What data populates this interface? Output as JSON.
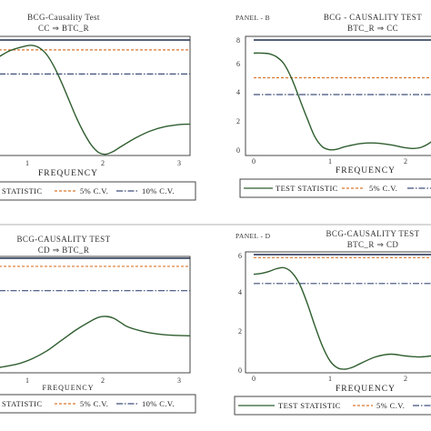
{
  "colors": {
    "test_statistic": "#2f5e2f",
    "cv5": "#d9772e",
    "cv10": "#3f4f7a",
    "top_line": "#1f2f4f"
  },
  "legend": {
    "test_statistic": "Test statistic",
    "test_statistic_cut": "STATISTIC",
    "cv5": "5% C.V.",
    "cv10": "10% C.V."
  },
  "chart_data": [
    {
      "id": "A",
      "type": "line",
      "panel_label": "",
      "title": "BCG-Causality Test",
      "subtitle": "CC ⇒ BTC_R",
      "xlabel": "Frequency",
      "x_ticks": [
        "1",
        "2",
        "3"
      ],
      "xlim": [
        0.55,
        3.14
      ],
      "ylim": [
        0,
        6.4
      ],
      "cv5": 5.99,
      "cv10": 4.61,
      "series": [
        {
          "name": "Test statistic",
          "x": [
            0.55,
            0.7,
            0.9,
            1.0,
            1.1,
            1.2,
            1.3,
            1.4,
            1.5,
            1.6,
            1.7,
            1.8,
            1.9,
            2.0,
            2.1,
            2.2,
            2.4,
            2.6,
            2.8,
            3.0,
            3.14
          ],
          "y": [
            5.6,
            5.95,
            6.2,
            6.25,
            6.1,
            5.7,
            5.0,
            4.1,
            3.1,
            2.1,
            1.25,
            0.55,
            0.12,
            0.02,
            0.18,
            0.45,
            0.95,
            1.35,
            1.6,
            1.72,
            1.74
          ]
        }
      ]
    },
    {
      "id": "B",
      "type": "line",
      "panel_label": "Panel - B",
      "title": "BCG - Causality Test",
      "subtitle": "BTC_R ⇒ CC",
      "xlabel": "Frequency",
      "x_ticks": [
        "0",
        "1",
        "2"
      ],
      "y_ticks": [
        "0",
        "2",
        "4",
        "6",
        "8"
      ],
      "xlim": [
        0,
        2.4
      ],
      "ylim": [
        0,
        9.0
      ],
      "cv5": 5.99,
      "cv10": 4.61,
      "series": [
        {
          "name": "Test statistic",
          "x": [
            0,
            0.1,
            0.2,
            0.3,
            0.4,
            0.5,
            0.6,
            0.7,
            0.8,
            0.9,
            1.0,
            1.1,
            1.2,
            1.4,
            1.6,
            1.8,
            2.0,
            2.1,
            2.2,
            2.3,
            2.4
          ],
          "y": [
            8.0,
            8.0,
            7.95,
            7.7,
            7.1,
            5.9,
            4.3,
            2.7,
            1.2,
            0.35,
            0.1,
            0.15,
            0.35,
            0.6,
            0.65,
            0.5,
            0.25,
            0.2,
            0.3,
            0.6,
            1.1
          ]
        }
      ]
    },
    {
      "id": "C",
      "type": "line",
      "panel_label": "",
      "title": "BCG-Causality Test",
      "subtitle": "CD ⇒ BTC_R",
      "xlabel": "Frequency",
      "x_ticks": [
        "1",
        "2",
        "3"
      ],
      "xlim": [
        0.55,
        3.14
      ],
      "ylim": [
        0,
        6.4
      ],
      "cv5": 5.99,
      "cv10": 4.61,
      "series": [
        {
          "name": "Test statistic",
          "x": [
            0.55,
            0.8,
            1.0,
            1.2,
            1.4,
            1.6,
            1.8,
            1.9,
            2.0,
            2.1,
            2.2,
            2.3,
            2.5,
            2.7,
            2.9,
            3.14
          ],
          "y": [
            0.25,
            0.45,
            0.75,
            1.2,
            1.8,
            2.4,
            2.9,
            3.1,
            3.15,
            3.05,
            2.8,
            2.55,
            2.3,
            2.15,
            2.08,
            2.05
          ]
        }
      ]
    },
    {
      "id": "D",
      "type": "line",
      "panel_label": "Panel - D",
      "title": "BCG-Causality Test",
      "subtitle": "BTC_R ⇒ CD",
      "xlabel": "Frequency",
      "x_ticks": [
        "0",
        "1",
        "2"
      ],
      "y_ticks": [
        "0",
        "2",
        "4",
        "6"
      ],
      "xlim": [
        0,
        2.4
      ],
      "ylim": [
        0,
        6.2
      ],
      "cv5": 5.99,
      "cv10": 4.61,
      "series": [
        {
          "name": "Test statistic",
          "x": [
            0,
            0.1,
            0.2,
            0.3,
            0.4,
            0.5,
            0.6,
            0.7,
            0.8,
            0.9,
            1.0,
            1.1,
            1.2,
            1.3,
            1.4,
            1.6,
            1.8,
            2.0,
            2.2,
            2.4
          ],
          "y": [
            5.1,
            5.15,
            5.25,
            5.4,
            5.45,
            5.2,
            4.6,
            3.6,
            2.4,
            1.3,
            0.5,
            0.12,
            0.05,
            0.15,
            0.35,
            0.7,
            0.85,
            0.75,
            0.7,
            0.8
          ]
        }
      ]
    }
  ]
}
